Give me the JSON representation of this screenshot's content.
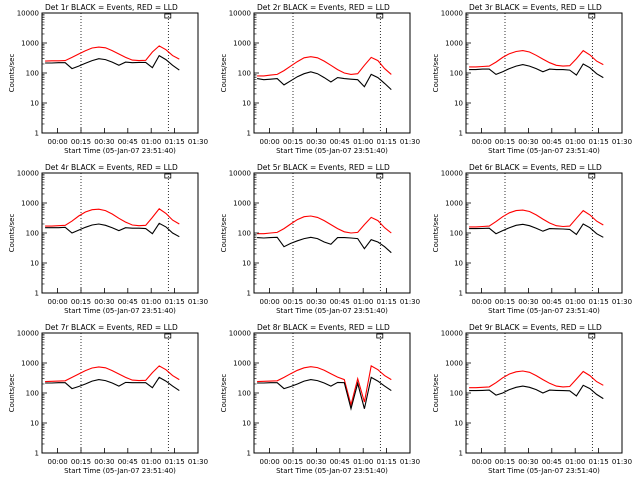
{
  "chart_data": [
    {
      "type": "line",
      "title": "Det 1r BLACK = Events, RED = LLD",
      "xlabel": "Start Time (05-Jan-07 23:51:40)",
      "ylabel": "Counts/sec",
      "yscale": "log",
      "ylim": [
        1,
        10000
      ],
      "xlim_minutes": [
        -10,
        90
      ],
      "x_tick_labels": [
        "00:00",
        "00:15",
        "00:30",
        "00:45",
        "01:00",
        "01:15",
        "01:30"
      ],
      "y_tick_labels": [
        "1",
        "10",
        "100",
        "1000",
        "10000"
      ],
      "series": [
        {
          "color": "#ff0000",
          "values": [
            250,
            255,
            255,
            260,
            330,
            430,
            550,
            680,
            730,
            690,
            560,
            430,
            330,
            270,
            260,
            265,
            500,
            800,
            600,
            380,
            290
          ]
        },
        {
          "color": "#000000",
          "values": [
            215,
            215,
            220,
            220,
            140,
            170,
            210,
            260,
            300,
            280,
            230,
            180,
            230,
            220,
            225,
            225,
            150,
            380,
            280,
            180,
            125
          ]
        }
      ]
    },
    {
      "type": "line",
      "title": "Det 2r BLACK = Events, RED = LLD",
      "xlabel": "Start Time (05-Jan-07 23:51:40)",
      "ylabel": "Counts/sec",
      "yscale": "log",
      "ylim": [
        1,
        10000
      ],
      "xlim_minutes": [
        -10,
        90
      ],
      "x_tick_labels": [
        "00:00",
        "00:15",
        "00:30",
        "00:45",
        "01:00",
        "01:15",
        "01:30"
      ],
      "y_tick_labels": [
        "1",
        "10",
        "100",
        "1000",
        "10000"
      ],
      "series": [
        {
          "color": "#ff0000",
          "values": [
            80,
            80,
            85,
            90,
            120,
            170,
            240,
            320,
            350,
            320,
            250,
            180,
            130,
            100,
            90,
            95,
            180,
            330,
            260,
            140,
            90
          ]
        },
        {
          "color": "#000000",
          "values": [
            65,
            60,
            62,
            65,
            40,
            55,
            75,
            95,
            110,
            95,
            70,
            50,
            70,
            65,
            62,
            60,
            35,
            90,
            70,
            45,
            28
          ]
        }
      ]
    },
    {
      "type": "line",
      "title": "Det 3r BLACK = Events, RED = LLD",
      "xlabel": "Start Time (05-Jan-07 23:51:40)",
      "ylabel": "Counts/sec",
      "yscale": "log",
      "ylim": [
        1,
        10000
      ],
      "xlim_minutes": [
        -10,
        90
      ],
      "x_tick_labels": [
        "00:00",
        "00:15",
        "00:30",
        "00:45",
        "01:00",
        "01:15",
        "01:30"
      ],
      "y_tick_labels": [
        "1",
        "10",
        "100",
        "1000",
        "10000"
      ],
      "series": [
        {
          "color": "#ff0000",
          "values": [
            160,
            160,
            165,
            170,
            230,
            330,
            440,
            520,
            560,
            500,
            390,
            290,
            220,
            180,
            170,
            175,
            300,
            560,
            400,
            250,
            190
          ]
        },
        {
          "color": "#000000",
          "values": [
            130,
            130,
            135,
            135,
            90,
            110,
            140,
            170,
            190,
            170,
            140,
            110,
            135,
            130,
            130,
            125,
            85,
            200,
            150,
            95,
            70
          ]
        }
      ]
    },
    {
      "type": "line",
      "title": "Det 4r BLACK = Events, RED = LLD",
      "xlabel": "Start Time (05-Jan-07 23:51:40)",
      "ylabel": "Counts/sec",
      "yscale": "log",
      "ylim": [
        1,
        10000
      ],
      "xlim_minutes": [
        -10,
        90
      ],
      "x_tick_labels": [
        "00:00",
        "00:15",
        "00:30",
        "00:45",
        "01:00",
        "01:15",
        "01:30"
      ],
      "y_tick_labels": [
        "1",
        "10",
        "100",
        "1000",
        "10000"
      ],
      "series": [
        {
          "color": "#ff0000",
          "values": [
            170,
            170,
            175,
            180,
            250,
            370,
            500,
            600,
            620,
            560,
            430,
            310,
            230,
            185,
            175,
            180,
            330,
            640,
            450,
            270,
            200
          ]
        },
        {
          "color": "#000000",
          "values": [
            150,
            150,
            150,
            155,
            100,
            125,
            155,
            185,
            200,
            180,
            150,
            120,
            150,
            145,
            145,
            140,
            95,
            210,
            160,
            100,
            75
          ]
        }
      ]
    },
    {
      "type": "line",
      "title": "Det 5r BLACK = Events, RED = LLD",
      "xlabel": "Start Time (05-Jan-07 23:51:40)",
      "ylabel": "Counts/sec",
      "yscale": "log",
      "ylim": [
        1,
        10000
      ],
      "xlim_minutes": [
        -10,
        90
      ],
      "x_tick_labels": [
        "00:00",
        "00:15",
        "00:30",
        "00:45",
        "01:00",
        "01:15",
        "01:30"
      ],
      "y_tick_labels": [
        "1",
        "10",
        "100",
        "1000",
        "10000"
      ],
      "series": [
        {
          "color": "#ff0000",
          "values": [
            95,
            95,
            100,
            105,
            140,
            200,
            280,
            350,
            370,
            330,
            260,
            190,
            140,
            110,
            100,
            105,
            190,
            330,
            260,
            150,
            100
          ]
        },
        {
          "color": "#000000",
          "values": [
            70,
            68,
            70,
            72,
            35,
            45,
            55,
            65,
            72,
            65,
            50,
            42,
            70,
            70,
            68,
            65,
            30,
            60,
            50,
            35,
            22
          ]
        }
      ]
    },
    {
      "type": "line",
      "title": "Det 6r BLACK = Events, RED = LLD",
      "xlabel": "Start Time (05-Jan-07 23:51:40)",
      "ylabel": "Counts/sec",
      "yscale": "log",
      "ylim": [
        1,
        10000
      ],
      "xlim_minutes": [
        -10,
        90
      ],
      "x_tick_labels": [
        "00:00",
        "00:15",
        "00:30",
        "00:45",
        "01:00",
        "01:15",
        "01:30"
      ],
      "y_tick_labels": [
        "1",
        "10",
        "100",
        "1000",
        "10000"
      ],
      "series": [
        {
          "color": "#ff0000",
          "values": [
            160,
            160,
            165,
            170,
            240,
            350,
            470,
            560,
            580,
            520,
            400,
            290,
            215,
            175,
            165,
            170,
            310,
            560,
            400,
            250,
            185
          ]
        },
        {
          "color": "#000000",
          "values": [
            140,
            140,
            142,
            145,
            95,
            120,
            150,
            180,
            195,
            175,
            145,
            115,
            140,
            138,
            136,
            132,
            90,
            200,
            150,
            95,
            72
          ]
        }
      ]
    },
    {
      "type": "line",
      "title": "Det 7r BLACK = Events, RED = LLD",
      "xlabel": "Start Time (05-Jan-07 23:51:40)",
      "ylabel": "Counts/sec",
      "yscale": "log",
      "ylim": [
        1,
        10000
      ],
      "xlim_minutes": [
        -10,
        90
      ],
      "x_tick_labels": [
        "00:00",
        "00:15",
        "00:30",
        "00:45",
        "01:00",
        "01:15",
        "01:30"
      ],
      "y_tick_labels": [
        "1",
        "10",
        "100",
        "1000",
        "10000"
      ],
      "series": [
        {
          "color": "#ff0000",
          "values": [
            240,
            245,
            250,
            255,
            330,
            430,
            560,
            680,
            740,
            690,
            560,
            430,
            330,
            270,
            260,
            265,
            480,
            800,
            600,
            380,
            280
          ]
        },
        {
          "color": "#000000",
          "values": [
            215,
            215,
            220,
            220,
            140,
            165,
            200,
            250,
            280,
            260,
            215,
            170,
            225,
            220,
            220,
            220,
            150,
            330,
            250,
            170,
            120
          ]
        }
      ]
    },
    {
      "type": "line",
      "title": "Det 8r BLACK = Events, RED = LLD",
      "xlabel": "Start Time (05-Jan-07 23:51:40)",
      "ylabel": "Counts/sec",
      "yscale": "log",
      "ylim": [
        1,
        10000
      ],
      "xlim_minutes": [
        -10,
        90
      ],
      "x_tick_labels": [
        "00:00",
        "00:15",
        "00:30",
        "00:45",
        "01:00",
        "01:15",
        "01:30"
      ],
      "y_tick_labels": [
        "1",
        "10",
        "100",
        "1000",
        "10000"
      ],
      "series": [
        {
          "color": "#ff0000",
          "values": [
            240,
            245,
            250,
            255,
            330,
            440,
            570,
            690,
            750,
            700,
            570,
            440,
            340,
            280,
            40,
            300,
            50,
            800,
            600,
            380,
            280
          ]
        },
        {
          "color": "#000000",
          "values": [
            215,
            215,
            220,
            220,
            140,
            165,
            200,
            250,
            280,
            260,
            215,
            170,
            225,
            220,
            30,
            210,
            30,
            330,
            250,
            170,
            120
          ]
        }
      ]
    },
    {
      "type": "line",
      "title": "Det 9r BLACK = Events, RED = LLD",
      "xlabel": "Start Time (05-Jan-07 23:51:40)",
      "ylabel": "Counts/sec",
      "yscale": "log",
      "ylim": [
        1,
        10000
      ],
      "xlim_minutes": [
        -10,
        90
      ],
      "x_tick_labels": [
        "00:00",
        "00:15",
        "00:30",
        "00:45",
        "01:00",
        "01:15",
        "01:30"
      ],
      "y_tick_labels": [
        "1",
        "10",
        "100",
        "1000",
        "10000"
      ],
      "series": [
        {
          "color": "#ff0000",
          "values": [
            150,
            150,
            155,
            160,
            220,
            320,
            430,
            510,
            540,
            490,
            380,
            280,
            210,
            170,
            160,
            165,
            290,
            520,
            380,
            240,
            180
          ]
        },
        {
          "color": "#000000",
          "values": [
            120,
            120,
            122,
            125,
            85,
            100,
            130,
            155,
            170,
            155,
            130,
            100,
            125,
            122,
            120,
            118,
            80,
            180,
            140,
            90,
            65
          ]
        }
      ]
    }
  ]
}
